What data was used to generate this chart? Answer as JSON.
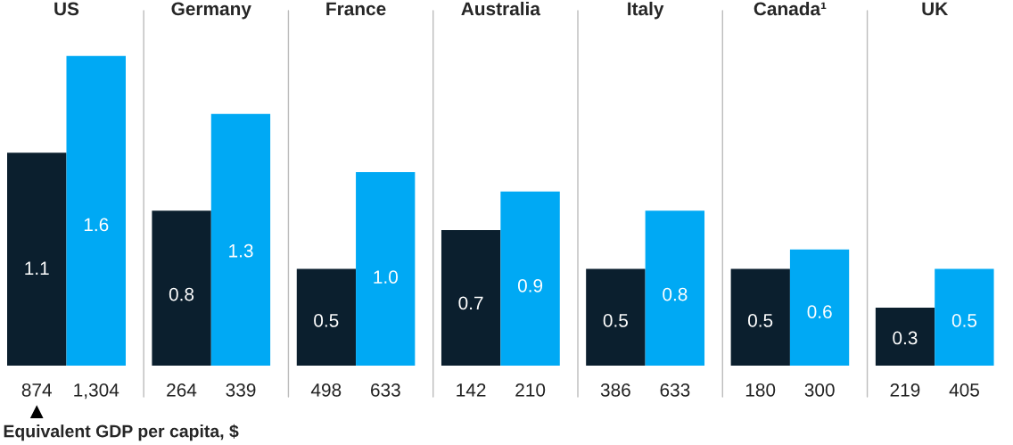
{
  "chart_data": [
    {
      "type": "bar",
      "title": "US",
      "categories": [
        "874",
        "1,304"
      ],
      "values": [
        1.1,
        1.6
      ],
      "colors": [
        "#0b1f2e",
        "#00a9f4"
      ],
      "data_labels": true,
      "annotations": [
        "Equivalent GDP per capita, $"
      ]
    },
    {
      "type": "bar",
      "title": "Germany",
      "categories": [
        "264",
        "339"
      ],
      "values": [
        0.8,
        1.3
      ],
      "colors": [
        "#0b1f2e",
        "#00a9f4"
      ],
      "data_labels": true
    },
    {
      "type": "bar",
      "title": "France",
      "categories": [
        "498",
        "633"
      ],
      "values": [
        0.5,
        1.0
      ],
      "value_labels": [
        "0.5",
        "1.0"
      ],
      "colors": [
        "#0b1f2e",
        "#00a9f4"
      ]
    },
    {
      "type": "bar",
      "title": "Australia",
      "categories": [
        "142",
        "210"
      ],
      "values": [
        0.7,
        0.9
      ],
      "colors": [
        "#0b1f2e",
        "#00a9f4"
      ],
      "data_labels": true
    },
    {
      "type": "bar",
      "title": "Italy",
      "categories": [
        "386",
        "633"
      ],
      "values": [
        0.5,
        0.8
      ],
      "colors": [
        "#0b1f2e",
        "#00a9f4"
      ],
      "data_labels": true
    },
    {
      "type": "bar",
      "title": "Canada¹",
      "categories": [
        "180",
        "300"
      ],
      "values": [
        0.5,
        0.6
      ],
      "colors": [
        "#0b1f2e",
        "#00a9f4"
      ],
      "data_labels": true
    },
    {
      "type": "bar",
      "title": "UK",
      "categories": [
        "219",
        "405"
      ],
      "values": [
        0.3,
        0.5
      ],
      "colors": [
        "#0b1f2e",
        "#00a9f4"
      ],
      "data_labels": true
    }
  ]
}
